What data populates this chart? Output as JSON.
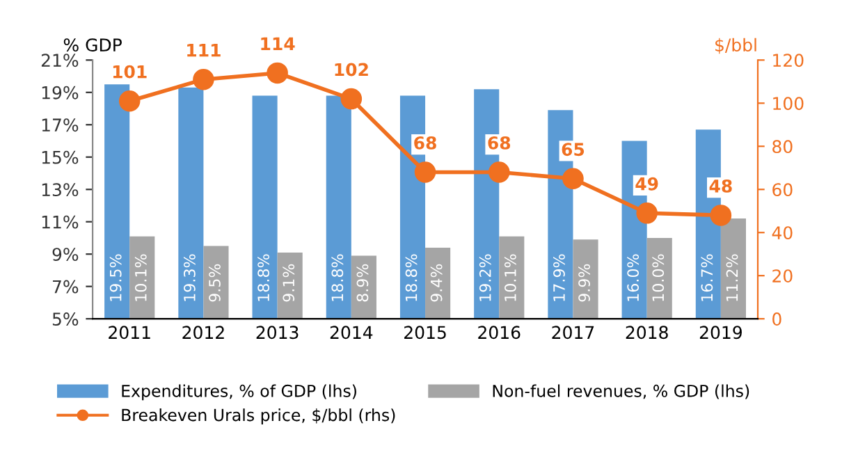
{
  "chart_data": {
    "type": "bar",
    "categories": [
      "2011",
      "2012",
      "2013",
      "2014",
      "2015",
      "2016",
      "2017",
      "2018",
      "2019"
    ],
    "ylabel": "% GDP",
    "y2label": "$/bbl",
    "series": [
      {
        "name": "Expenditures, % of GDP (lhs)",
        "color": "#5b9bd5",
        "values": [
          19.5,
          19.3,
          18.8,
          18.8,
          18.8,
          19.2,
          17.9,
          16.0,
          16.7
        ],
        "value_labels": [
          "19.5%",
          "19.3%",
          "18.8%",
          "18.8%",
          "18.8%",
          "19.2%",
          "17.9%",
          "16.0%",
          "16.7%"
        ]
      },
      {
        "name": "Non-fuel revenues, % GDP (lhs)",
        "color": "#a5a5a5",
        "values": [
          10.1,
          9.5,
          9.1,
          8.9,
          9.4,
          10.1,
          9.9,
          10.0,
          11.2
        ],
        "value_labels": [
          "10.1%",
          "9.5%",
          "9.1%",
          "8.9%",
          "9.4%",
          "10.1%",
          "9.9%",
          "10.0%",
          "11.2%"
        ]
      },
      {
        "name": "Breakeven Urals price, $/bbl (rhs)",
        "type": "line",
        "axis": "y2",
        "color": "#f07020",
        "marker": "circle",
        "values": [
          101,
          111,
          114,
          102,
          68,
          68,
          65,
          49,
          48
        ],
        "value_labels": [
          "101",
          "111",
          "114",
          "102",
          "68",
          "68",
          "65",
          "49",
          "48"
        ]
      }
    ],
    "ylim": [
      5,
      21
    ],
    "yticks": [
      {
        "value": 5,
        "label": "5%"
      },
      {
        "value": 7,
        "label": "7%"
      },
      {
        "value": 9,
        "label": "9%"
      },
      {
        "value": 11,
        "label": "11%"
      },
      {
        "value": 13,
        "label": "13%"
      },
      {
        "value": 15,
        "label": "15%"
      },
      {
        "value": 17,
        "label": "17%"
      },
      {
        "value": 19,
        "label": "19%"
      },
      {
        "value": 21,
        "label": "21%"
      }
    ],
    "y2lim": [
      0,
      120
    ],
    "y2ticks": [
      0,
      20,
      40,
      60,
      80,
      100,
      120
    ],
    "legend": "bottom",
    "grid": false
  }
}
